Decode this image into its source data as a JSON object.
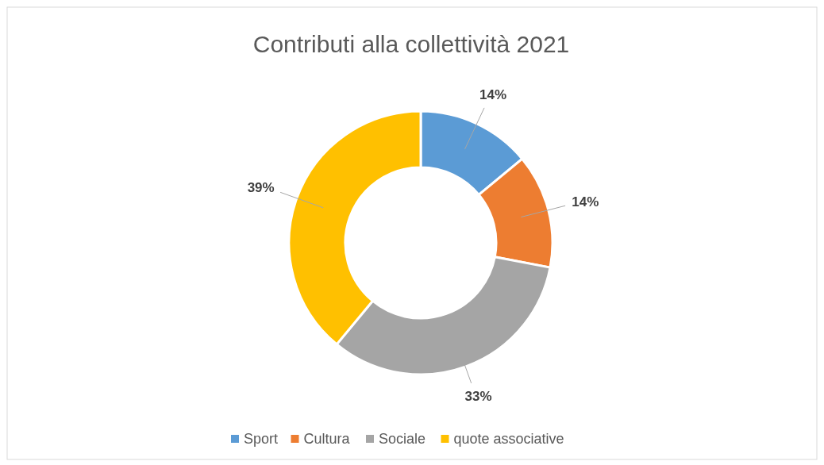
{
  "chart_data": {
    "type": "donut",
    "title": "Contributi alla collettività 2021",
    "categories": [
      "Sport",
      "Cultura",
      "Sociale",
      "quote associative"
    ],
    "values": [
      14,
      14,
      33,
      39
    ],
    "colors": [
      "#5b9bd5",
      "#ed7d31",
      "#a5a5a5",
      "#ffc000"
    ],
    "value_labels": [
      "14%",
      "14%",
      "33%",
      "39%"
    ],
    "legend": "bottom"
  }
}
